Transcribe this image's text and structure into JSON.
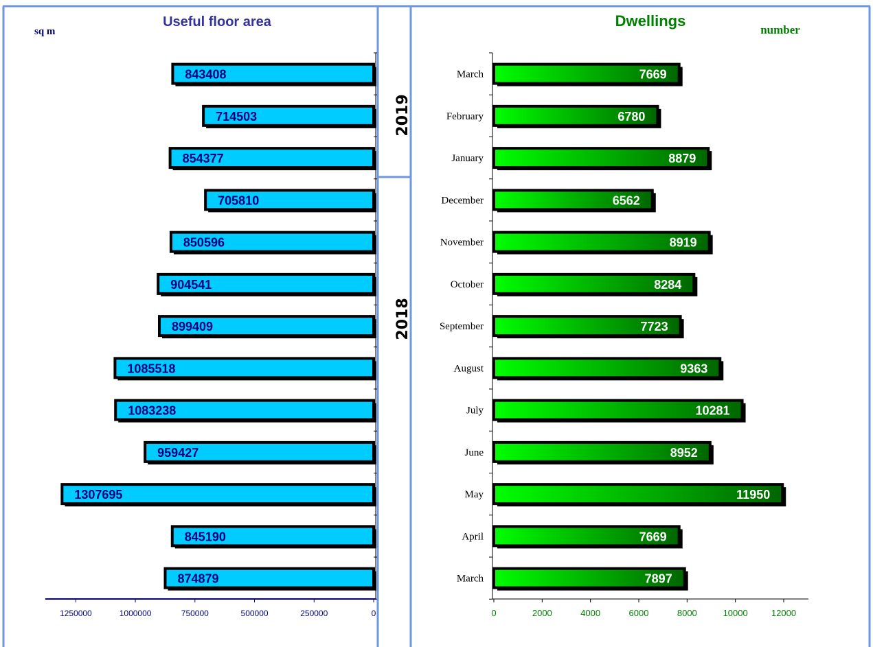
{
  "colors": {
    "panel_border": "#6f96e0",
    "left_bar": "#00ccff",
    "left_axis": "#000080",
    "right_bar_light": "#00ff00",
    "right_bar_dark": "#006600",
    "right_axis": "#008000",
    "bar_shadow": "#000000"
  },
  "chart_data": [
    {
      "type": "bar",
      "orientation": "horizontal",
      "direction": "right-to-left",
      "title": "Useful floor area",
      "unit_label": "sq m",
      "categories": [
        "March",
        "April",
        "May",
        "June",
        "July",
        "August",
        "September",
        "October",
        "November",
        "December",
        "January",
        "February",
        "March"
      ],
      "values": [
        874879,
        845190,
        1307695,
        959427,
        1083238,
        1085518,
        899409,
        904541,
        850596,
        705810,
        854377,
        714503,
        843408
      ],
      "data_labels": [
        "874879",
        "845190",
        "1307695",
        "959427",
        "1083238",
        "1085518",
        "899409",
        "904541",
        "850596",
        "705810",
        "854377",
        "714503",
        "843408"
      ],
      "xlim": [
        0,
        1375000
      ],
      "x_ticks": [
        1250000,
        1000000,
        750000,
        500000,
        250000,
        0
      ],
      "x_tick_labels": [
        "1250000",
        "1000000",
        "750000",
        "500000",
        "250000",
        "0"
      ],
      "grid": false,
      "legend": "none"
    },
    {
      "type": "bar",
      "orientation": "horizontal",
      "title": "Dwellings",
      "unit_label": "number",
      "categories": [
        "March",
        "April",
        "May",
        "June",
        "July",
        "August",
        "September",
        "October",
        "November",
        "December",
        "January",
        "February",
        "March"
      ],
      "values": [
        7897,
        7669,
        11950,
        8952,
        10281,
        9363,
        7723,
        8284,
        8919,
        6562,
        8879,
        6780,
        7669
      ],
      "data_labels": [
        "7897",
        "7669",
        "11950",
        "8952",
        "10281",
        "9363",
        "7723",
        "8284",
        "8919",
        "6562",
        "8879",
        "6780",
        "7669"
      ],
      "xlim": [
        0,
        13000
      ],
      "x_ticks": [
        0,
        2000,
        4000,
        6000,
        8000,
        10000,
        12000
      ],
      "x_tick_labels": [
        "0",
        "2000",
        "4000",
        "6000",
        "8000",
        "10000",
        "12000"
      ],
      "grid": false,
      "legend": "none"
    }
  ],
  "year_groups": [
    {
      "label": "2019",
      "first_index": 10,
      "last_index": 12
    },
    {
      "label": "2018",
      "first_index": 0,
      "last_index": 9
    }
  ]
}
